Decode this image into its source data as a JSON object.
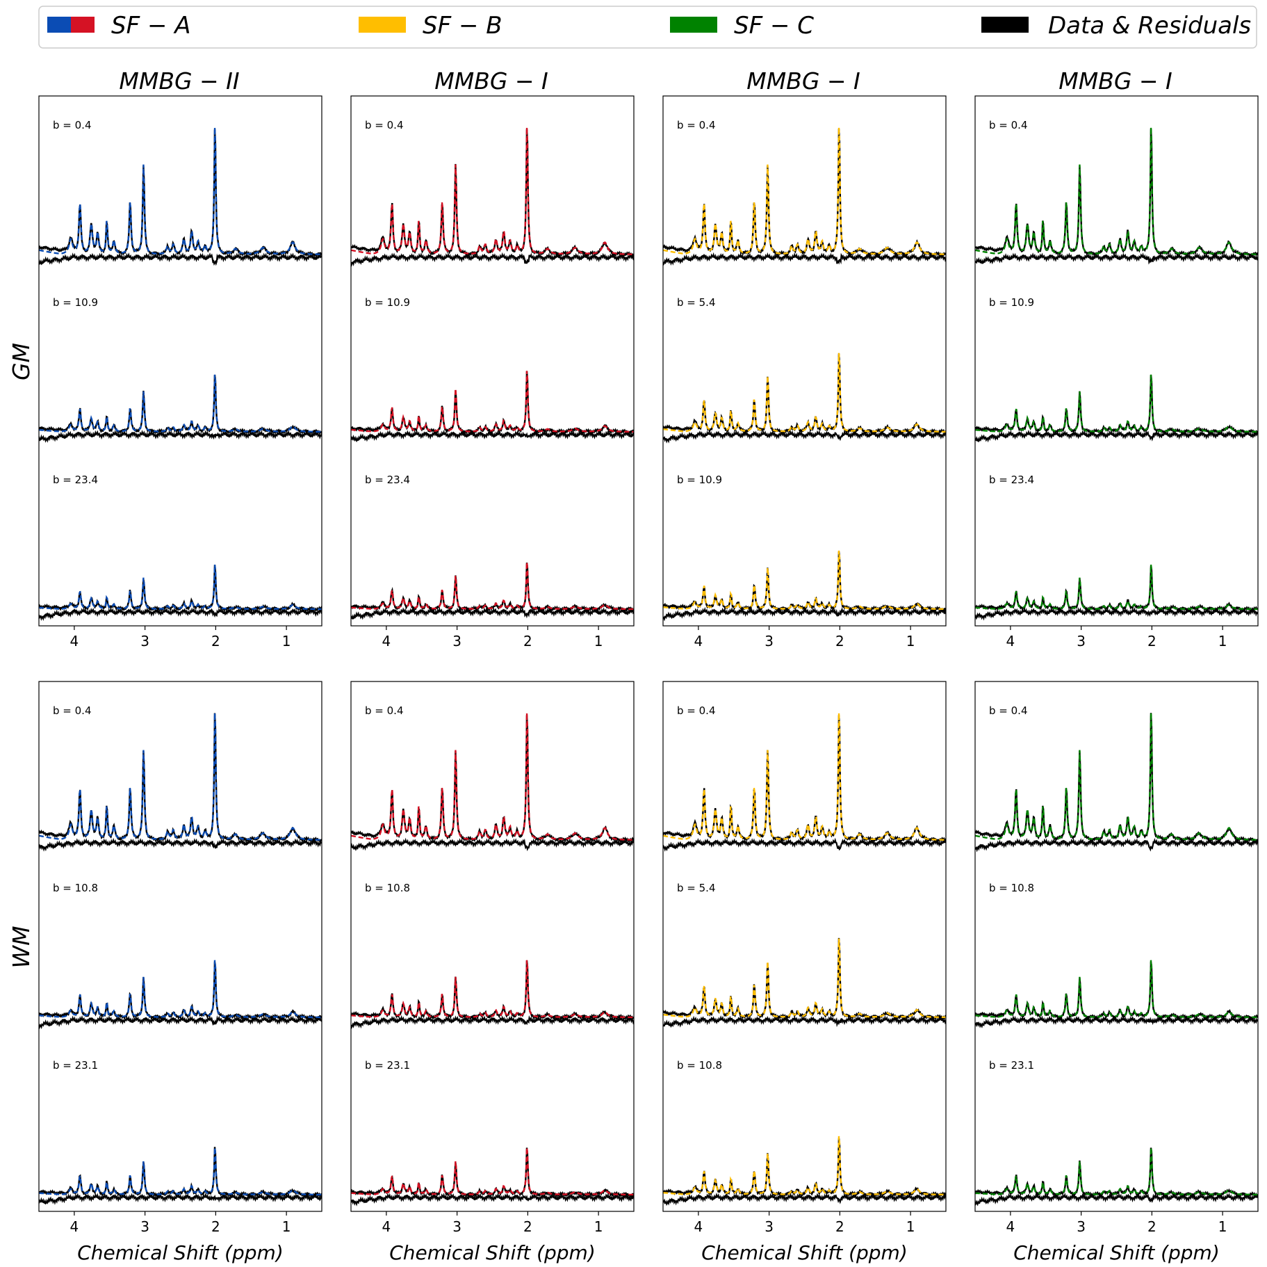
{
  "legend": {
    "items": [
      {
        "label": "SF − A",
        "colors": [
          "#0b4cb4",
          "#d51224"
        ]
      },
      {
        "label": "SF − B",
        "colors": [
          "#ffbe00"
        ]
      },
      {
        "label": "SF − C",
        "colors": [
          "#008200"
        ]
      },
      {
        "label": "Data & Residuals",
        "colors": [
          "#000000"
        ]
      }
    ]
  },
  "row_labels": [
    "GM",
    "WM"
  ],
  "column_titles": [
    "MMBG − II",
    "MMBG − I",
    "MMBG − I",
    "MMBG − I"
  ],
  "x_axis_label": "Chemical Shift (ppm)",
  "colors": {
    "blue": "#0b4cb4",
    "red": "#d51224",
    "yellow": "#ffbe00",
    "green": "#008200",
    "data": "#000000"
  },
  "chart_data": [
    {
      "type": "line",
      "row": "GM",
      "title": "MMBG − II",
      "fit_color": "#0b4cb4",
      "xlim": [
        4.5,
        0.5
      ],
      "xticks": [
        4,
        3,
        2,
        1
      ],
      "xlabel": "",
      "b_values": [
        "b = 0.4",
        "b = 10.9",
        "b = 23.4"
      ],
      "scales": [
        1.0,
        0.45,
        0.35
      ]
    },
    {
      "type": "line",
      "row": "GM",
      "title": "MMBG − I",
      "fit_color": "#d51224",
      "xlim": [
        4.5,
        0.5
      ],
      "xticks": [
        4,
        3,
        2,
        1
      ],
      "xlabel": "",
      "b_values": [
        "b = 0.4",
        "b = 10.9",
        "b = 23.4"
      ],
      "scales": [
        1.0,
        0.48,
        0.37
      ]
    },
    {
      "type": "line",
      "row": "GM",
      "title": "MMBG − I",
      "fit_color": "#ffbe00",
      "xlim": [
        4.5,
        0.5
      ],
      "xticks": [
        4,
        3,
        2,
        1
      ],
      "xlabel": "",
      "b_values": [
        "b = 0.4",
        "b = 5.4",
        "b = 10.9"
      ],
      "scales": [
        1.0,
        0.62,
        0.46
      ]
    },
    {
      "type": "line",
      "row": "GM",
      "title": "MMBG − I",
      "fit_color": "#008200",
      "xlim": [
        4.5,
        0.5
      ],
      "xticks": [
        4,
        3,
        2,
        1
      ],
      "xlabel": "",
      "b_values": [
        "b = 0.4",
        "b = 10.9",
        "b = 23.4"
      ],
      "scales": [
        1.0,
        0.45,
        0.35
      ]
    },
    {
      "type": "line",
      "row": "WM",
      "title": "",
      "fit_color": "#0b4cb4",
      "xlim": [
        4.5,
        0.5
      ],
      "xticks": [
        4,
        3,
        2,
        1
      ],
      "xlabel": "Chemical Shift (ppm)",
      "b_values": [
        "b = 0.4",
        "b = 10.8",
        "b = 23.1"
      ],
      "scales": [
        1.0,
        0.45,
        0.37
      ]
    },
    {
      "type": "line",
      "row": "WM",
      "title": "",
      "fit_color": "#d51224",
      "xlim": [
        4.5,
        0.5
      ],
      "xticks": [
        4,
        3,
        2,
        1
      ],
      "xlabel": "Chemical Shift (ppm)",
      "b_values": [
        "b = 0.4",
        "b = 10.8",
        "b = 23.1"
      ],
      "scales": [
        1.0,
        0.45,
        0.37
      ]
    },
    {
      "type": "line",
      "row": "WM",
      "title": "",
      "fit_color": "#ffbe00",
      "xlim": [
        4.5,
        0.5
      ],
      "xticks": [
        4,
        3,
        2,
        1
      ],
      "xlabel": "Chemical Shift (ppm)",
      "b_values": [
        "b = 0.4",
        "b = 5.4",
        "b = 10.8"
      ],
      "scales": [
        1.0,
        0.62,
        0.46
      ]
    },
    {
      "type": "line",
      "row": "WM",
      "title": "",
      "fit_color": "#008200",
      "xlim": [
        4.5,
        0.5
      ],
      "xticks": [
        4,
        3,
        2,
        1
      ],
      "xlabel": "Chemical Shift (ppm)",
      "b_values": [
        "b = 0.4",
        "b = 10.8",
        "b = 23.1"
      ],
      "scales": [
        1.0,
        0.45,
        0.37
      ]
    }
  ]
}
